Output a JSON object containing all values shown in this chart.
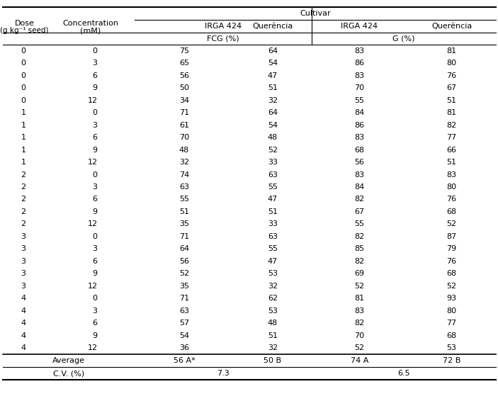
{
  "doses": [
    0,
    0,
    0,
    0,
    0,
    1,
    1,
    1,
    1,
    1,
    2,
    2,
    2,
    2,
    2,
    3,
    3,
    3,
    3,
    3,
    4,
    4,
    4,
    4,
    4
  ],
  "concentrations": [
    0,
    3,
    6,
    9,
    12,
    0,
    3,
    6,
    9,
    12,
    0,
    3,
    6,
    9,
    12,
    0,
    3,
    6,
    9,
    12,
    0,
    3,
    6,
    9,
    12
  ],
  "fcg_irga424": [
    75,
    65,
    56,
    50,
    34,
    71,
    61,
    70,
    48,
    32,
    74,
    63,
    55,
    51,
    35,
    71,
    64,
    56,
    52,
    35,
    71,
    63,
    57,
    54,
    36
  ],
  "fcg_querencia": [
    64,
    54,
    47,
    51,
    32,
    64,
    54,
    48,
    52,
    33,
    63,
    55,
    47,
    51,
    33,
    63,
    55,
    47,
    53,
    32,
    62,
    53,
    48,
    51,
    32
  ],
  "g_irga424": [
    83,
    86,
    83,
    70,
    55,
    84,
    86,
    83,
    68,
    56,
    83,
    84,
    82,
    67,
    55,
    82,
    85,
    82,
    69,
    52,
    81,
    83,
    82,
    70,
    52
  ],
  "g_querencia": [
    81,
    80,
    76,
    67,
    51,
    81,
    82,
    77,
    66,
    51,
    83,
    80,
    76,
    68,
    52,
    87,
    79,
    76,
    68,
    52,
    93,
    80,
    77,
    68,
    53
  ],
  "avg_fcg_irga": "56 A*",
  "avg_fcg_quer": "50 B",
  "avg_g_irga": "74 A",
  "avg_g_quer": "72 B",
  "cv_fcg": "7.3",
  "cv_g": "6.5",
  "background": "#ffffff",
  "font_size": 8.0,
  "header_font_size": 8.0
}
